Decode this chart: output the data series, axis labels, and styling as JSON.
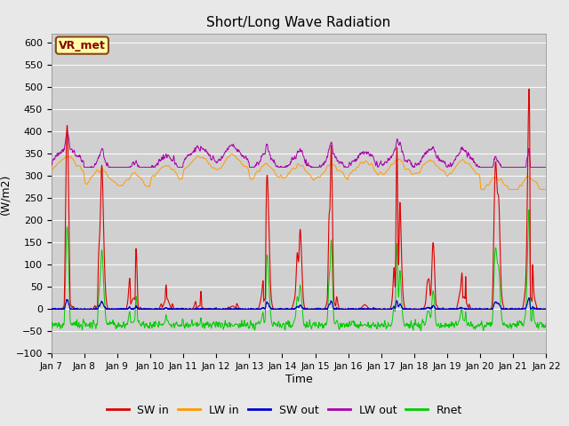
{
  "title": "Short/Long Wave Radiation",
  "ylabel": "(W/m2)",
  "xlabel": "Time",
  "ylim": [
    -100,
    620
  ],
  "yticks": [
    -100,
    -50,
    0,
    50,
    100,
    150,
    200,
    250,
    300,
    350,
    400,
    450,
    500,
    550,
    600
  ],
  "annotation": "VR_met",
  "date_labels": [
    "Jan 7",
    "Jan 8",
    "Jan 9",
    "Jan 10",
    "Jan 11",
    "Jan 12",
    "Jan 13",
    "Jan 14",
    "Jan 15",
    "Jan 16",
    "Jan 17",
    "Jan 18",
    "Jan 19",
    "Jan 20",
    "Jan 21",
    "Jan 22"
  ],
  "colors": {
    "SW_in": "#dd0000",
    "LW_in": "#ff9900",
    "SW_out": "#0000cc",
    "LW_out": "#aa00aa",
    "Rnet": "#00cc00"
  },
  "legend_labels": [
    "SW in",
    "LW in",
    "SW out",
    "LW out",
    "Rnet"
  ],
  "fig_facecolor": "#e8e8e8",
  "plot_facecolor": "#d0d0d0"
}
